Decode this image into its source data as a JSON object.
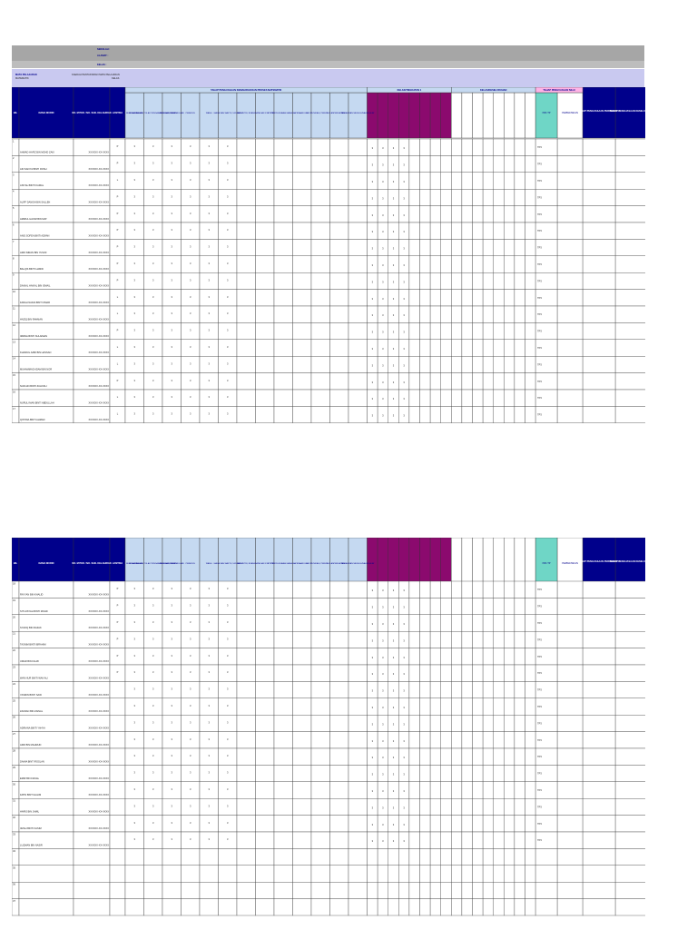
{
  "header": {
    "school_label": "SEKOLAH :",
    "address_label": "ALAMAT :",
    "class_label": "KELAS :",
    "subject_label": "MATA PELAJARAN",
    "subject_name": "MATEMATIK",
    "subject_group": "KAEDAH PENTAKSIRAN MATA PELAJARAN",
    "class_value": "KELAS"
  },
  "table": {
    "col_no": "BIL",
    "col_name": "NAMA MURID",
    "col_id": "NO. MYKID / NO. SIJIL KELAHIRAN",
    "col_gender": "JANTINA",
    "group_a": "TAHAP PENGUASAAN KEMAHIRAN DAN PROSES MATEMATIK",
    "group_b": "KELAS/TINGKATAN 1",
    "group_c": "KELAS/KESELURUHAN",
    "group_d": "TAHAP PENGUASAAN NILAI",
    "group_e": "TAHAP PENGUASAAN PERINGKAT 1",
    "group_f": "TAHAP PENGUASAAN KESELURUHAN",
    "skills": [
      "NILAI DAN ANGKA",
      "PENAMBAHAN, TOLAK PENDARABAN DAN BAHAGI",
      "PECAHAN, PERPULUHAN",
      "PERATUS",
      "WANG",
      "MASA DAN WAKTU, UKURAN",
      "GEOMETRI, RUANG",
      "DATA DAN STATISTIK",
      "PENYELESAIAN MASALAH",
      "PENAAKULAN",
      "KOMUNIKASI, PERWAKILAN",
      "PERKAITAN",
      "KEMAHIRAN MENGGUNAKAN ALAT"
    ],
    "dd_label": "Pilih TP",
    "nilai_label": "PERWATAKAN"
  },
  "page1_rows": [
    {
      "n": "1",
      "name": "AHMAD HAFIZ BIN MOHD ZAKI",
      "id": "XXXXXX-XX-XXXX",
      "g": "P",
      "tp": "TP3"
    },
    {
      "n": "2",
      "name": "AIN SAFIYA BINTI ROSLI",
      "id": "XXXXXX-XX-XXXX",
      "g": "P",
      "tp": "TP3"
    },
    {
      "n": "3",
      "name": "AISYAH BINTI KAMAL",
      "id": "XXXXXX-XX-XXXX",
      "g": "L",
      "tp": "TP3"
    },
    {
      "n": "4",
      "name": "ALIFF DANISH BIN SALLEH",
      "id": "XXXXXX-XX-XXXX",
      "g": "P",
      "tp": "TP3"
    },
    {
      "n": "5",
      "name": "AMIRUL HAKIM BIN MAT",
      "id": "XXXXXX-XX-XXXX",
      "g": "P",
      "tp": "TP3"
    },
    {
      "n": "6",
      "name": "ANIS SOFEA BINTI AZMAN",
      "id": "XXXXXX-XX-XXXX",
      "g": "P",
      "tp": "TP3"
    },
    {
      "n": "7",
      "name": "ARIF IMRAN BIN YUSOF",
      "id": "XXXXXX-XX-XXXX",
      "g": "P",
      "tp": "TP3"
    },
    {
      "n": "8",
      "name": "BALQIS BINTI HAMID",
      "id": "XXXXXX-XX-XXXX",
      "g": "P",
      "tp": "TP3"
    },
    {
      "n": "9",
      "name": "DANIAL HAIKAL BIN ISMAIL",
      "id": "XXXXXX-XX-XXXX",
      "g": "P",
      "tp": "TP3"
    },
    {
      "n": "10",
      "name": "FARAH NADIA BINTI OMAR",
      "id": "XXXXXX-XX-XXXX",
      "g": "L",
      "tp": "TP3"
    },
    {
      "n": "11",
      "name": "HAZIQ BIN RAHMAN",
      "id": "XXXXXX-XX-XXXX",
      "g": "L",
      "tp": "TP3"
    },
    {
      "n": "12",
      "name": "IRDINA BINTI SULAIMAN",
      "id": "XXXXXX-XX-XXXX",
      "g": "P",
      "tp": "TP3"
    },
    {
      "n": "13",
      "name": "KHAIRUL AZMI BIN HASSAN",
      "id": "XXXXXX-XX-XXXX",
      "g": "L",
      "tp": "TP3"
    },
    {
      "n": "14",
      "name": "MUHAMMAD ADAM BIN NOR",
      "id": "XXXXXX-XX-XXXX",
      "g": "L",
      "tp": "TP3"
    },
    {
      "n": "15",
      "name": "NUR AIN BINTI ZULKIFLI",
      "id": "XXXXXX-XX-XXXX",
      "g": "P",
      "tp": "TP3"
    },
    {
      "n": "16",
      "name": "NURUL IMAN BINTI ABDULLAH",
      "id": "XXXXXX-XX-XXXX",
      "g": "L",
      "tp": "TP3"
    },
    {
      "n": "17",
      "name": "QISTINA BINTI AHMAD",
      "id": "XXXXXX-XX-XXXX",
      "g": "L",
      "tp": "TP3"
    }
  ],
  "page2_rows": [
    {
      "n": "18",
      "name": "RAYYAN BIN KHALID",
      "id": "XXXXXX-XX-XXXX",
      "g": "P",
      "tp": "TP3"
    },
    {
      "n": "19",
      "name": "SITI AISYAH BINTI MOHD",
      "id": "XXXXXX-XX-XXXX",
      "g": "P",
      "tp": "TP3"
    },
    {
      "n": "20",
      "name": "SYAFIQ BIN RAZAK",
      "id": "XXXXXX-XX-XXXX",
      "g": "P",
      "tp": "TP3"
    },
    {
      "n": "21",
      "name": "TASNIM BINTI IBRAHIM",
      "id": "XXXXXX-XX-XXXX",
      "g": "P",
      "tp": "TP3"
    },
    {
      "n": "22",
      "name": "UMAR BIN FAUZI",
      "id": "XXXXXX-XX-XXXX",
      "g": "P",
      "tp": "TP3"
    },
    {
      "n": "23",
      "name": "WAN NUR BINTI WAN ALI",
      "id": "XXXXXX-XX-XXXX",
      "g": "P",
      "tp": "TP3"
    },
    {
      "n": "24",
      "name": "YASMIN BINTI SAID",
      "id": "XXXXXX-XX-XXXX",
      "g": "",
      "tp": "TP3"
    },
    {
      "n": "25",
      "name": "ZAFRAN BIN ZAINAL",
      "id": "XXXXXX-XX-XXXX",
      "g": "",
      "tp": "TP3"
    },
    {
      "n": "26",
      "name": "ADRIANA BINTI YAHYA",
      "id": "XXXXXX-XX-XXXX",
      "g": "",
      "tp": "TP3"
    },
    {
      "n": "27",
      "name": "AZRI BIN MAHMUD",
      "id": "XXXXXX-XX-XXXX",
      "g": "",
      "tp": "TP3"
    },
    {
      "n": "28",
      "name": "DAMIA BINTI ROSLAN",
      "id": "XXXXXX-XX-XXXX",
      "g": "",
      "tp": "TP3"
    },
    {
      "n": "29",
      "name": "EMIR BIN FAISAL",
      "id": "XXXXXX-XX-XXXX",
      "g": "",
      "tp": "TP3"
    },
    {
      "n": "30",
      "name": "FATIN BINTI HALIM",
      "id": "XXXXXX-XX-XXXX",
      "g": "",
      "tp": "TP3"
    },
    {
      "n": "31",
      "name": "HARIS BIN JAMIL",
      "id": "XXXXXX-XX-XXXX",
      "g": "",
      "tp": "TP3"
    },
    {
      "n": "32",
      "name": "IZZAH BINTI KASIM",
      "id": "XXXXXX-XX-XXXX",
      "g": "",
      "tp": "TP3"
    },
    {
      "n": "33",
      "name": "LUQMAN BIN NASIR",
      "id": "XXXXXX-XX-XXXX",
      "g": "",
      "tp": "TP3"
    },
    {
      "n": "34",
      "name": "",
      "id": "",
      "g": "",
      "tp": ""
    },
    {
      "n": "35",
      "name": "",
      "id": "",
      "g": "",
      "tp": ""
    },
    {
      "n": "36",
      "name": "",
      "id": "",
      "g": "",
      "tp": ""
    },
    {
      "n": "37",
      "name": "",
      "id": "",
      "g": "",
      "tp": ""
    }
  ],
  "colors": {
    "navy": "#00008b",
    "lightblue": "#c5d9f1",
    "magenta": "#8b0a6e",
    "teal": "#6fd6c6",
    "pink": "#ffb3e6",
    "header_gray": "#a6a6a6",
    "lavender": "#c9c9f0"
  }
}
